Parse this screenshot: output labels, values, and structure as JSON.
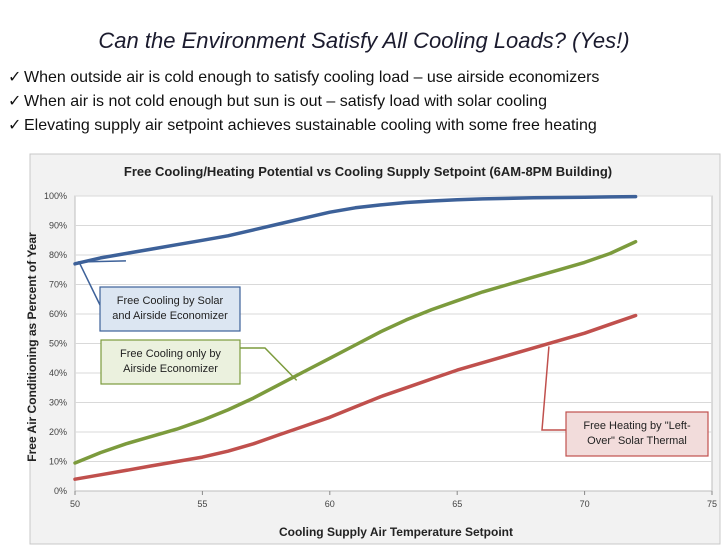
{
  "slide": {
    "title": "Can the Environment Satisfy All Cooling Loads? (Yes!)",
    "bullets": [
      "When outside air is cold enough to satisfy cooling load – use airside economizers",
      "When air is not cold enough but sun is out – satisfy load with solar cooling",
      "Elevating supply air setpoint achieves sustainable cooling with some free heating"
    ],
    "check_icon": "checkmark-icon"
  },
  "chart_data": {
    "type": "line",
    "title": "Free Cooling/Heating Potential vs Cooling Supply Setpoint (6AM-8PM Building)",
    "xlabel": "Cooling Supply Air Temperature Setpoint",
    "ylabel": "Free Air Conditioning as Percent of Year",
    "xlim": [
      50,
      75
    ],
    "ylim": [
      0,
      100
    ],
    "x_ticks": [
      "50",
      "55",
      "60",
      "65",
      "70",
      "75"
    ],
    "y_ticks": [
      "0%",
      "10%",
      "20%",
      "30%",
      "40%",
      "50%",
      "60%",
      "70%",
      "80%",
      "90%",
      "100%"
    ],
    "grid": "horizontal",
    "series": [
      {
        "name": "Free Cooling by Solar and Airside Economizer",
        "color": "#3d6199",
        "x": [
          50,
          51,
          52,
          53,
          54,
          55,
          56,
          57,
          58,
          59,
          60,
          61,
          62,
          63,
          64,
          65,
          66,
          67,
          68,
          69,
          70,
          71,
          72
        ],
        "y": [
          77,
          79,
          80.5,
          82,
          83.5,
          85,
          86.5,
          88.5,
          90.5,
          92.5,
          94.5,
          96,
          97,
          97.8,
          98.3,
          98.7,
          99,
          99.2,
          99.4,
          99.5,
          99.6,
          99.7,
          99.8
        ]
      },
      {
        "name": "Free Cooling only by Airside Economizer",
        "color": "#7c9b3d",
        "x": [
          50,
          51,
          52,
          53,
          54,
          55,
          56,
          57,
          58,
          59,
          60,
          61,
          62,
          63,
          64,
          65,
          66,
          67,
          68,
          69,
          70,
          71,
          72
        ],
        "y": [
          9.5,
          13,
          16,
          18.5,
          21,
          24,
          27.5,
          31.5,
          36,
          40.5,
          45,
          49.5,
          54,
          58,
          61.5,
          64.5,
          67.5,
          70,
          72.5,
          75,
          77.5,
          80.5,
          84.5
        ]
      },
      {
        "name": "Free Heating by \"Left-Over\" Solar Thermal",
        "color": "#c0504d",
        "x": [
          50,
          51,
          52,
          53,
          54,
          55,
          56,
          57,
          58,
          59,
          60,
          61,
          62,
          63,
          64,
          65,
          66,
          67,
          68,
          69,
          70,
          71,
          72
        ],
        "y": [
          4,
          5.5,
          7,
          8.5,
          10,
          11.5,
          13.5,
          16,
          19,
          22,
          25,
          28.5,
          32,
          35,
          38,
          41,
          43.5,
          46,
          48.5,
          51,
          53.5,
          56.5,
          59.5
        ]
      }
    ],
    "annotations": [
      {
        "lines": [
          "Free Cooling by Solar",
          "and Airside Economizer"
        ],
        "series": 0,
        "fill": "#dce6f2",
        "border": "#3d6199"
      },
      {
        "lines": [
          "Free Cooling only by",
          "Airside Economizer"
        ],
        "series": 1,
        "fill": "#ebf1de",
        "border": "#7c9b3d"
      },
      {
        "lines": [
          "Free Heating by \"Left-",
          "Over\" Solar Thermal"
        ],
        "series": 2,
        "fill": "#f2dcdb",
        "border": "#c0504d"
      }
    ]
  }
}
